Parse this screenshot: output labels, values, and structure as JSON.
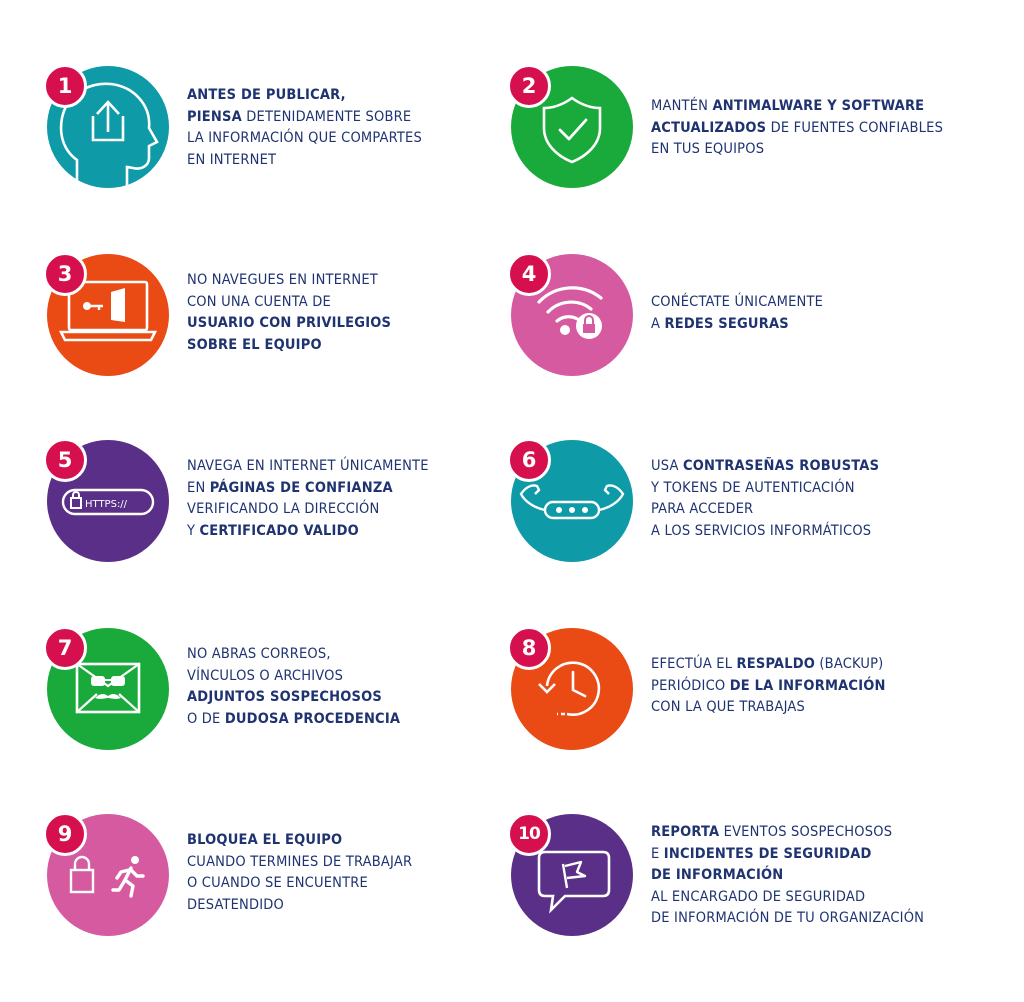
{
  "colors": {
    "teal": "#0e9aa7",
    "green": "#1aaa3c",
    "orange": "#ea4a13",
    "pink": "#d65aa0",
    "purple": "#5a2f88",
    "badge": "#d6104f",
    "text": "#1f3371"
  },
  "tips": [
    {
      "number": "1",
      "color": "teal",
      "icon": "head-upload-icon",
      "lines": [
        [
          {
            "t": "ANTES DE PUBLICAR,",
            "b": true
          }
        ],
        [
          {
            "t": "PIENSA",
            "b": true
          },
          {
            "t": " DETENIDAMENTE SOBRE",
            "b": false
          }
        ],
        [
          {
            "t": "LA INFORMACIÓN QUE COMPARTES",
            "b": false
          }
        ],
        [
          {
            "t": "EN INTERNET",
            "b": false
          }
        ]
      ]
    },
    {
      "number": "2",
      "color": "green",
      "icon": "shield-check-icon",
      "lines": [
        [
          {
            "t": "MANTÉN ",
            "b": false
          },
          {
            "t": "ANTIMALWARE Y SOFTWARE",
            "b": true
          }
        ],
        [
          {
            "t": "ACTUALIZADOS",
            "b": true
          },
          {
            "t": " DE FUENTES CONFIABLES",
            "b": false
          }
        ],
        [
          {
            "t": "EN TUS EQUIPOS",
            "b": false
          }
        ]
      ]
    },
    {
      "number": "3",
      "color": "orange",
      "icon": "laptop-key-door-icon",
      "lines": [
        [
          {
            "t": "NO NAVEGUES EN INTERNET",
            "b": false
          }
        ],
        [
          {
            "t": "CON UNA CUENTA DE",
            "b": false
          }
        ],
        [
          {
            "t": "USUARIO CON PRIVILEGIOS",
            "b": true
          }
        ],
        [
          {
            "t": "SOBRE EL EQUIPO",
            "b": true
          }
        ]
      ]
    },
    {
      "number": "4",
      "color": "pink",
      "icon": "wifi-lock-icon",
      "lines": [
        [
          {
            "t": "CONÉCTATE ÚNICAMENTE",
            "b": false
          }
        ],
        [
          {
            "t": "A ",
            "b": false
          },
          {
            "t": "REDES SEGURAS",
            "b": true
          }
        ]
      ]
    },
    {
      "number": "5",
      "color": "purple",
      "icon": "https-lock-icon",
      "icon_text": "HTTPS://",
      "lines": [
        [
          {
            "t": "NAVEGA EN INTERNET ÚNICAMENTE",
            "b": false
          }
        ],
        [
          {
            "t": "EN ",
            "b": false
          },
          {
            "t": "PÁGINAS DE CONFIANZA",
            "b": true
          }
        ],
        [
          {
            "t": "VERIFICANDO LA DIRECCIÓN",
            "b": false
          }
        ],
        [
          {
            "t": "Y ",
            "b": false
          },
          {
            "t": "CERTIFICADO VALIDO",
            "b": true
          }
        ]
      ]
    },
    {
      "number": "6",
      "color": "teal",
      "icon": "password-strength-icon",
      "lines": [
        [
          {
            "t": "USA ",
            "b": false
          },
          {
            "t": "CONTRASEÑAS ROBUSTAS",
            "b": true
          }
        ],
        [
          {
            "t": "Y TOKENS DE AUTENTICACIÓN",
            "b": false
          }
        ],
        [
          {
            "t": "PARA ACCEDER",
            "b": false
          }
        ],
        [
          {
            "t": "A LOS SERVICIOS INFORMÁTICOS",
            "b": false
          }
        ]
      ]
    },
    {
      "number": "7",
      "color": "green",
      "icon": "disguised-email-icon",
      "lines": [
        [
          {
            "t": "NO ABRAS CORREOS,",
            "b": false
          }
        ],
        [
          {
            "t": "VÍNCULOS O ARCHIVOS",
            "b": false
          }
        ],
        [
          {
            "t": "ADJUNTOS SOSPECHOSOS",
            "b": true
          }
        ],
        [
          {
            "t": "O DE ",
            "b": false
          },
          {
            "t": "DUDOSA PROCEDENCIA",
            "b": true
          }
        ]
      ]
    },
    {
      "number": "8",
      "color": "orange",
      "icon": "backup-clock-icon",
      "lines": [
        [
          {
            "t": "EFECTÚA EL ",
            "b": false
          },
          {
            "t": "RESPALDO",
            "b": true
          },
          {
            "t": " (BACKUP)",
            "b": false
          }
        ],
        [
          {
            "t": "PERIÓDICO ",
            "b": false
          },
          {
            "t": "DE LA INFORMACIÓN",
            "b": true
          }
        ],
        [
          {
            "t": "CON LA QUE TRABAJAS",
            "b": false
          }
        ]
      ]
    },
    {
      "number": "9",
      "color": "pink",
      "icon": "lock-runner-icon",
      "lines": [
        [
          {
            "t": "BLOQUEA EL EQUIPO",
            "b": true
          }
        ],
        [
          {
            "t": "CUANDO TERMINES DE TRABAJAR",
            "b": false
          }
        ],
        [
          {
            "t": "O CUANDO SE ENCUENTRE",
            "b": false
          }
        ],
        [
          {
            "t": "DESATENDIDO",
            "b": false
          }
        ]
      ]
    },
    {
      "number": "10",
      "color": "purple",
      "icon": "report-flag-icon",
      "lines": [
        [
          {
            "t": "REPORTA",
            "b": true
          },
          {
            "t": " EVENTOS SOSPECHOSOS",
            "b": false
          }
        ],
        [
          {
            "t": "E ",
            "b": false
          },
          {
            "t": "INCIDENTES DE SEGURIDAD",
            "b": true
          }
        ],
        [
          {
            "t": "DE INFORMACIÓN",
            "b": true
          }
        ],
        [
          {
            "t": "AL ENCARGADO DE SEGURIDAD",
            "b": false
          }
        ],
        [
          {
            "t": "DE INFORMACIÓN DE TU ORGANIZACIÓN",
            "b": false
          }
        ]
      ]
    }
  ]
}
